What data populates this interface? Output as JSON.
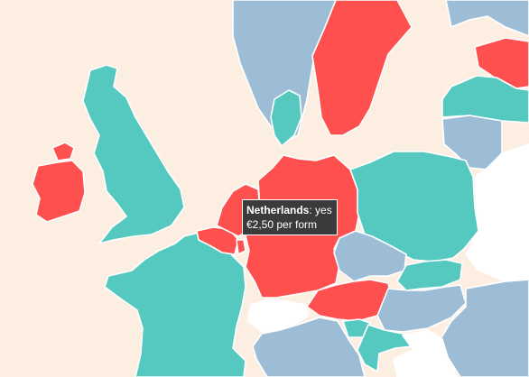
{
  "legend_colors": {
    "yes": "#ff5050",
    "no": "#55c8bf",
    "other": "#9dbdd6",
    "no_data": "#ffffff",
    "sea": "#fdeee2"
  },
  "countries": [
    {
      "id": "sweden",
      "status": "yes"
    },
    {
      "id": "norway",
      "status": "other"
    },
    {
      "id": "finland",
      "status": "other"
    },
    {
      "id": "estonia",
      "status": "yes"
    },
    {
      "id": "latvia",
      "status": "no"
    },
    {
      "id": "lithuania",
      "status": "other"
    },
    {
      "id": "denmark",
      "status": "no"
    },
    {
      "id": "united-kingdom",
      "status": "no"
    },
    {
      "id": "ireland",
      "status": "yes"
    },
    {
      "id": "northern-ireland",
      "status": "yes"
    },
    {
      "id": "netherlands",
      "status": "yes"
    },
    {
      "id": "belgium",
      "status": "yes"
    },
    {
      "id": "luxembourg",
      "status": "yes"
    },
    {
      "id": "france",
      "status": "no"
    },
    {
      "id": "germany",
      "status": "yes"
    },
    {
      "id": "poland",
      "status": "no"
    },
    {
      "id": "czechia",
      "status": "other"
    },
    {
      "id": "slovakia",
      "status": "no"
    },
    {
      "id": "austria",
      "status": "yes"
    },
    {
      "id": "hungary",
      "status": "other"
    },
    {
      "id": "switzerland",
      "status": "no_data"
    },
    {
      "id": "slovenia",
      "status": "no"
    },
    {
      "id": "italy",
      "status": "other"
    },
    {
      "id": "croatia",
      "status": "no"
    },
    {
      "id": "romania",
      "status": "other"
    },
    {
      "id": "belarus",
      "status": "no_data"
    },
    {
      "id": "serbia",
      "status": "no_data"
    }
  ],
  "tooltip": {
    "country": "Netherlands",
    "answer": ": yes",
    "detail": "€2,50 per form"
  }
}
